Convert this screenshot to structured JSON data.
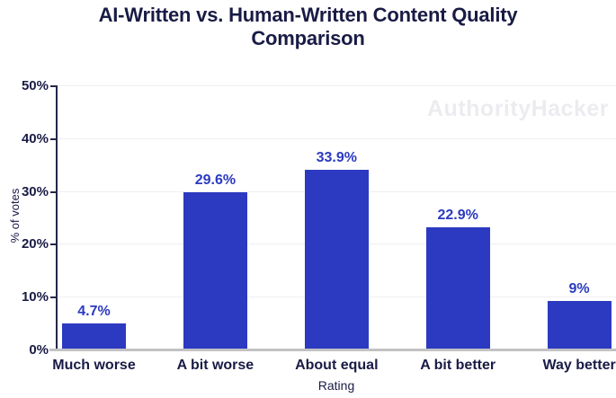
{
  "watermark": {
    "text": "AuthorityHacker"
  },
  "chart_data": {
    "type": "bar",
    "title": "AI-Written vs. Human-Written Content Quality Comparison",
    "categories": [
      "Much worse",
      "A bit worse",
      "About equal",
      "A bit better",
      "Way better"
    ],
    "values": [
      4.7,
      29.6,
      33.9,
      22.9,
      9
    ],
    "value_labels": [
      "4.7%",
      "29.6%",
      "33.9%",
      "22.9%",
      "9%"
    ],
    "xlabel": "Rating",
    "ylabel": "% of votes",
    "ylim": [
      0,
      50
    ],
    "yticks": [
      0,
      10,
      20,
      30,
      40,
      50
    ],
    "ytick_labels": [
      "0%",
      "10%",
      "20%",
      "30%",
      "40%",
      "50%"
    ],
    "grid": true,
    "legend": false,
    "colors": {
      "bar": "#2b3ac0",
      "data_label": "#2b3ac0",
      "title_text": "#191b45",
      "axis_text": "#191b45",
      "gridline": "#efeff1",
      "x_axis_line": "#c2c2c5",
      "y_axis_line": "#25264a",
      "watermark": "#ececf0",
      "background": "#ffffff"
    }
  }
}
